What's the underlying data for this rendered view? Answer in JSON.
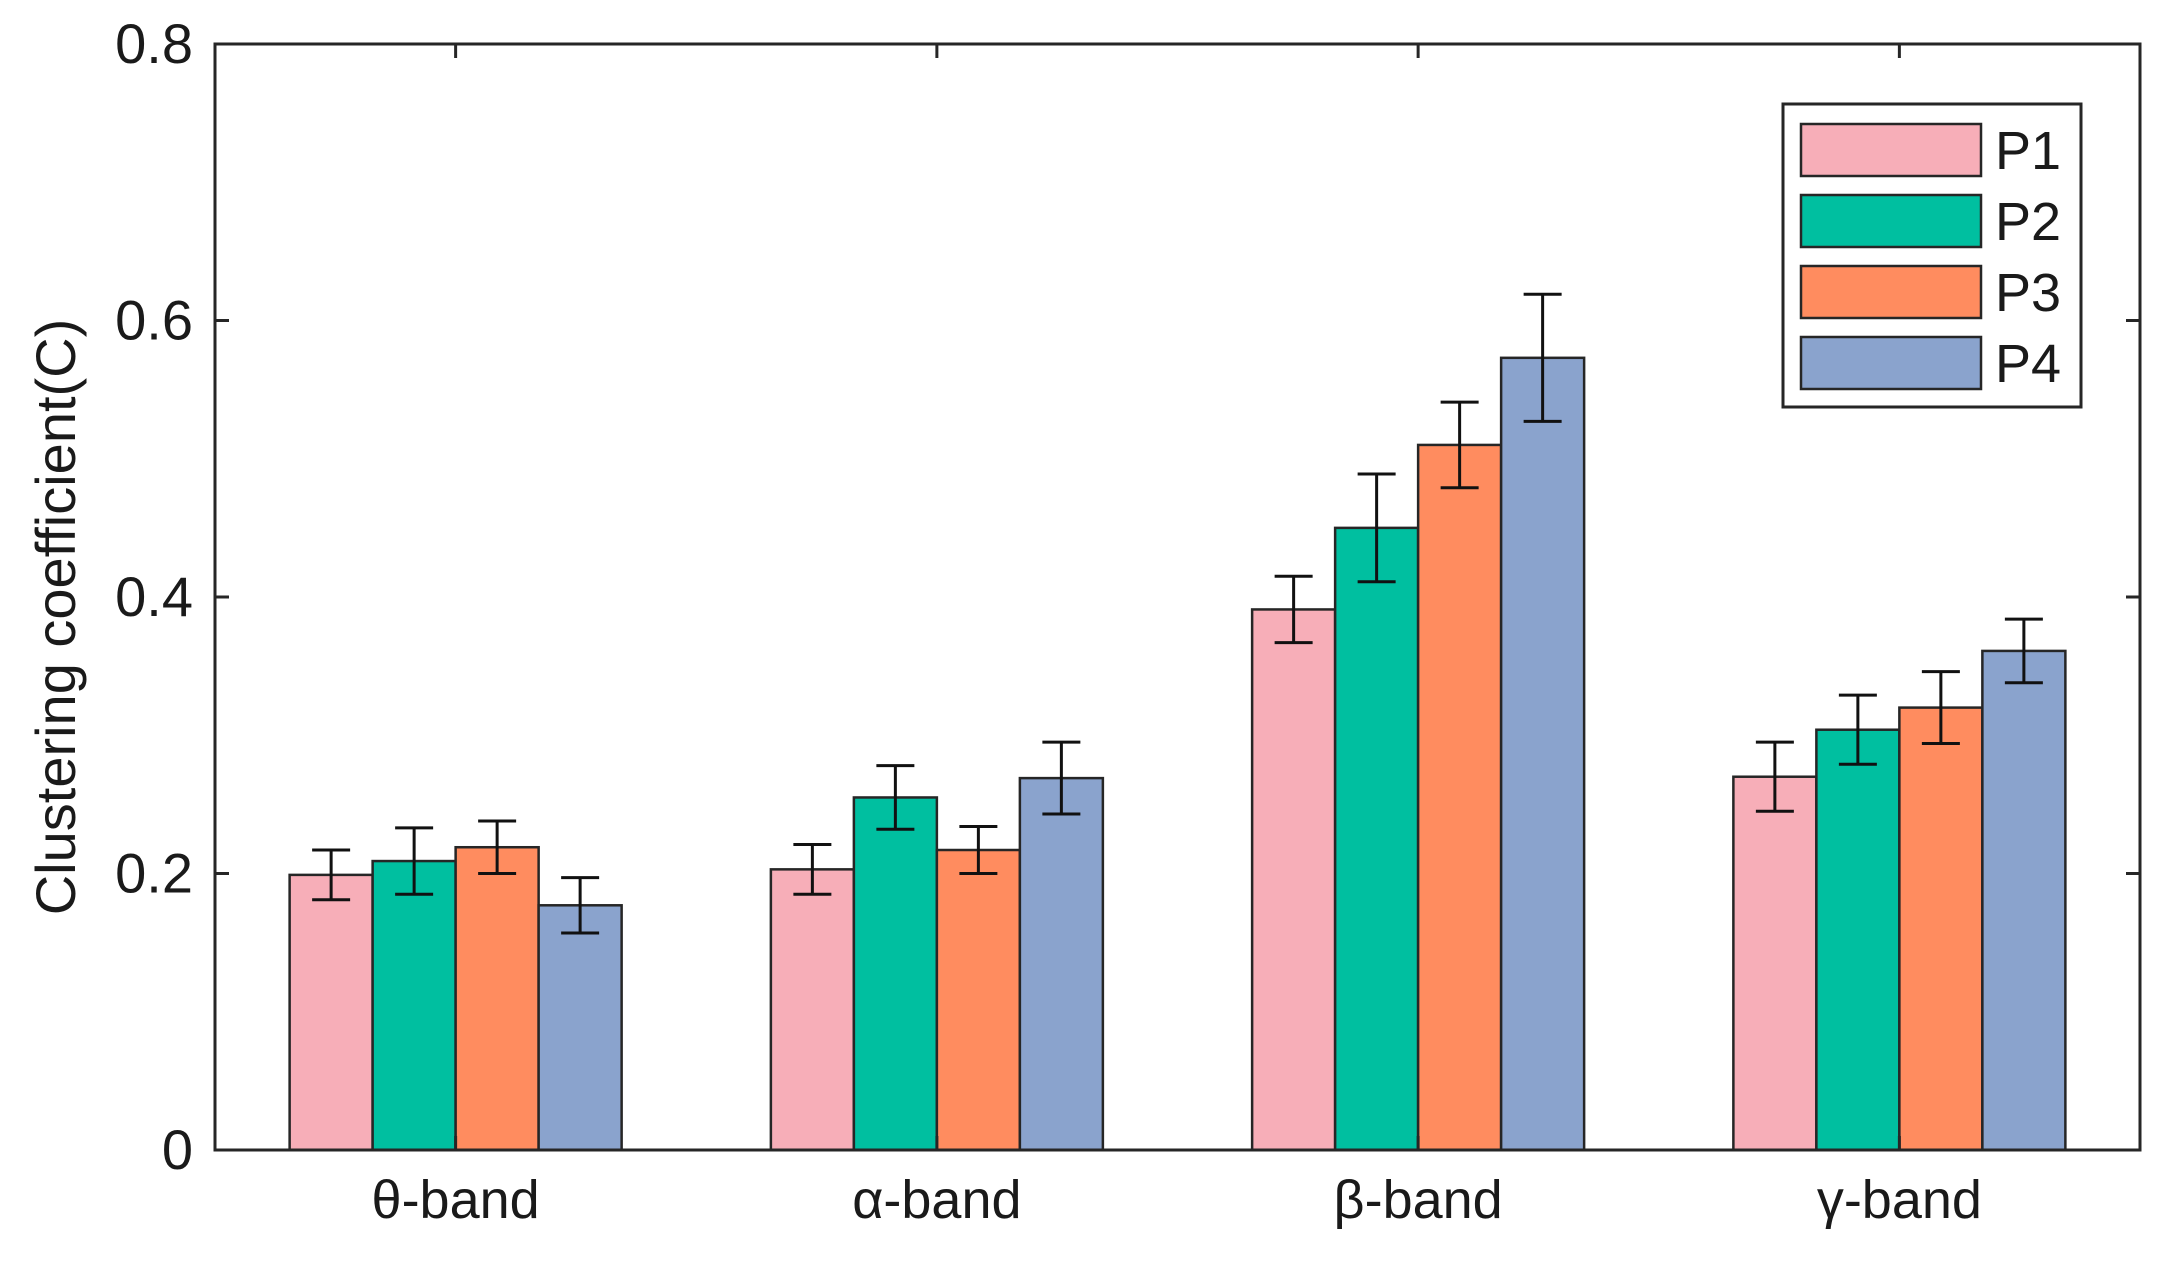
{
  "chart_data": {
    "type": "bar",
    "title": "",
    "xlabel": "",
    "ylabel": "Clustering coefficient(C)",
    "ylim": [
      0,
      0.8
    ],
    "yticks": [
      0,
      0.2,
      0.4,
      0.6,
      0.8
    ],
    "ytick_labels": [
      "0",
      "0.2",
      "0.4",
      "0.6",
      "0.8"
    ],
    "categories": [
      "θ-band",
      "α-band",
      "β-band",
      "γ-band"
    ],
    "series": [
      {
        "name": "P1",
        "color": "#F7AEB8",
        "values": [
          0.199,
          0.203,
          0.391,
          0.27
        ],
        "errors": [
          0.018,
          0.018,
          0.024,
          0.025
        ]
      },
      {
        "name": "P2",
        "color": "#00BFA0",
        "values": [
          0.209,
          0.255,
          0.45,
          0.304
        ],
        "errors": [
          0.024,
          0.023,
          0.039,
          0.025
        ]
      },
      {
        "name": "P3",
        "color": "#FF8C5F",
        "values": [
          0.219,
          0.217,
          0.51,
          0.32
        ],
        "errors": [
          0.019,
          0.017,
          0.031,
          0.026
        ]
      },
      {
        "name": "P4",
        "color": "#8AA3CD",
        "values": [
          0.177,
          0.269,
          0.573,
          0.361
        ],
        "errors": [
          0.02,
          0.026,
          0.046,
          0.023
        ]
      }
    ],
    "grid": false,
    "legend": "top-right"
  }
}
